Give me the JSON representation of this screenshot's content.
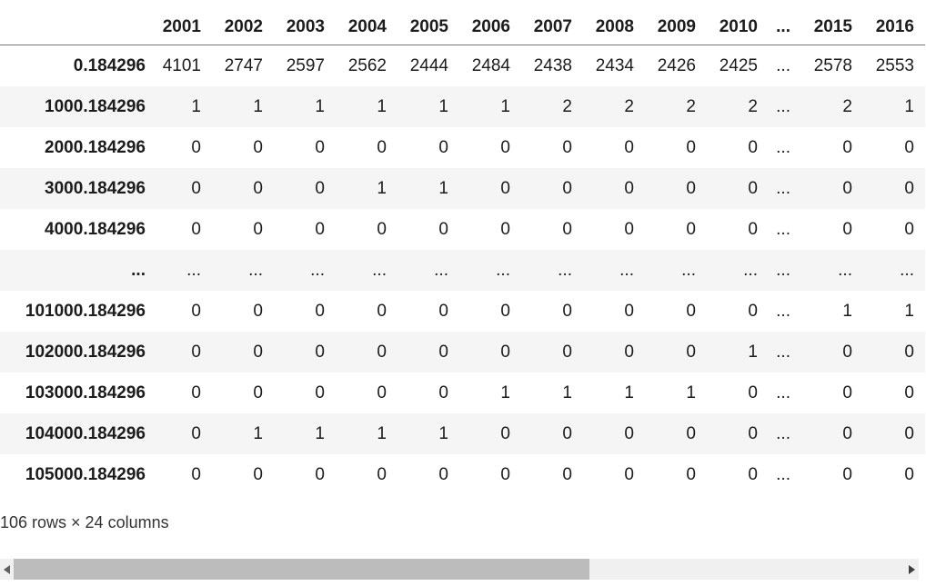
{
  "table": {
    "columns": [
      "",
      "2001",
      "2002",
      "2003",
      "2004",
      "2005",
      "2006",
      "2007",
      "2008",
      "2009",
      "2010",
      "...",
      "2015",
      "2016"
    ],
    "rows": [
      {
        "index": "0.184296",
        "values": [
          "4101",
          "2747",
          "2597",
          "2562",
          "2444",
          "2484",
          "2438",
          "2434",
          "2426",
          "2425",
          "...",
          "2578",
          "2553"
        ]
      },
      {
        "index": "1000.184296",
        "values": [
          "1",
          "1",
          "1",
          "1",
          "1",
          "1",
          "2",
          "2",
          "2",
          "2",
          "...",
          "2",
          "1"
        ]
      },
      {
        "index": "2000.184296",
        "values": [
          "0",
          "0",
          "0",
          "0",
          "0",
          "0",
          "0",
          "0",
          "0",
          "0",
          "...",
          "0",
          "0"
        ]
      },
      {
        "index": "3000.184296",
        "values": [
          "0",
          "0",
          "0",
          "1",
          "1",
          "0",
          "0",
          "0",
          "0",
          "0",
          "...",
          "0",
          "0"
        ]
      },
      {
        "index": "4000.184296",
        "values": [
          "0",
          "0",
          "0",
          "0",
          "0",
          "0",
          "0",
          "0",
          "0",
          "0",
          "...",
          "0",
          "0"
        ]
      },
      {
        "index": "...",
        "values": [
          "...",
          "...",
          "...",
          "...",
          "...",
          "...",
          "...",
          "...",
          "...",
          "...",
          "...",
          "...",
          "..."
        ]
      },
      {
        "index": "101000.184296",
        "values": [
          "0",
          "0",
          "0",
          "0",
          "0",
          "0",
          "0",
          "0",
          "0",
          "0",
          "...",
          "1",
          "1"
        ]
      },
      {
        "index": "102000.184296",
        "values": [
          "0",
          "0",
          "0",
          "0",
          "0",
          "0",
          "0",
          "0",
          "0",
          "1",
          "...",
          "0",
          "0"
        ]
      },
      {
        "index": "103000.184296",
        "values": [
          "0",
          "0",
          "0",
          "0",
          "0",
          "1",
          "1",
          "1",
          "1",
          "0",
          "...",
          "0",
          "0"
        ]
      },
      {
        "index": "104000.184296",
        "values": [
          "0",
          "1",
          "1",
          "1",
          "1",
          "0",
          "0",
          "0",
          "0",
          "0",
          "...",
          "0",
          "0"
        ]
      },
      {
        "index": "105000.184296",
        "values": [
          "0",
          "0",
          "0",
          "0",
          "0",
          "0",
          "0",
          "0",
          "0",
          "0",
          "...",
          "0",
          "0"
        ]
      }
    ],
    "column_widths": {
      "index": 165,
      "year": 68,
      "dots": 36
    }
  },
  "footer": {
    "summary": "106 rows × 24 columns"
  },
  "scrollbar": {
    "orientation": "horizontal",
    "left_icon": "left-arrow-icon",
    "right_icon": "right-arrow-icon",
    "track_color": "#f0f0f0",
    "thumb_color": "#bcbcbc"
  },
  "colors": {
    "row_stripe": "#f5f5f5",
    "header_border": "#757575",
    "text": "#1c1c1c"
  }
}
